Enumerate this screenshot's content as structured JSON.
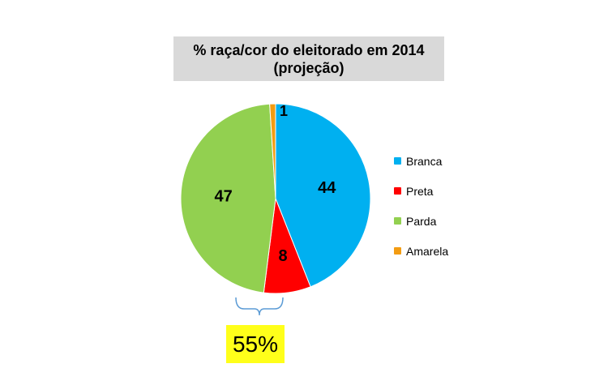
{
  "chart_data": {
    "type": "pie",
    "title_line1": "% raça/cor do eleitorado em 2014",
    "title_line2": "(projeção)",
    "slices": [
      {
        "label": "Branca",
        "value": 44,
        "color": "#00b0f0"
      },
      {
        "label": "Preta",
        "value": 8,
        "color": "#ff0000"
      },
      {
        "label": "Parda",
        "value": 47,
        "color": "#92d050"
      },
      {
        "label": "Amarela",
        "value": 1,
        "color": "#f39c12"
      }
    ],
    "legend_position": "right",
    "callout": {
      "text": "55%",
      "color": "#ffff1a"
    }
  }
}
